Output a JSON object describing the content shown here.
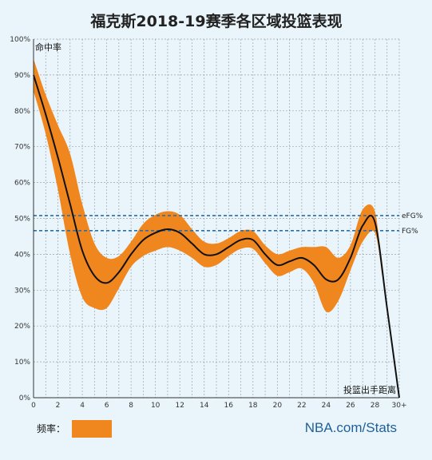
{
  "chart_data": {
    "type": "line",
    "title": "福克斯2018-19赛季各区域投篮表现",
    "ylabel": "命中率",
    "xlabel": "投篮出手距离",
    "x_ticks": [
      "0",
      "2",
      "4",
      "6",
      "8",
      "10",
      "12",
      "14",
      "16",
      "18",
      "20",
      "22",
      "24",
      "26",
      "28",
      "30+"
    ],
    "y_ticks": [
      "0%",
      "10%",
      "20%",
      "30%",
      "40%",
      "50%",
      "60%",
      "70%",
      "80%",
      "90%",
      "100%"
    ],
    "xlim": [
      0,
      30
    ],
    "ylim": [
      0,
      100
    ],
    "grid": true,
    "series": [
      {
        "x": [
          0,
          1,
          2,
          3,
          4,
          5,
          6,
          7,
          8,
          9,
          10,
          11,
          12,
          13,
          14,
          15,
          16,
          17,
          18,
          19,
          20,
          21,
          22,
          23,
          24,
          25,
          26,
          27,
          28,
          29,
          30
        ],
        "values": [
          90,
          79,
          67,
          54,
          41,
          34,
          32,
          35,
          40,
          44,
          46,
          47,
          46,
          43,
          40,
          40,
          42,
          44,
          44,
          40,
          37,
          38,
          39,
          37,
          33,
          33,
          39,
          48,
          49,
          25,
          0
        ],
        "color": "#111111"
      }
    ],
    "band": {
      "label": "频率：",
      "color": "#f0871e",
      "x": [
        0,
        1,
        2,
        3,
        4,
        5,
        6,
        7,
        8,
        9,
        10,
        11,
        12,
        13,
        14,
        15,
        16,
        17,
        18,
        19,
        20,
        21,
        22,
        23,
        24,
        25,
        26,
        27,
        28,
        28.6
      ],
      "half_width": [
        4.5,
        5.5,
        9,
        14,
        13,
        9,
        7,
        4.5,
        3.5,
        4.5,
        5,
        5,
        5,
        4,
        3.5,
        3,
        2.5,
        2.5,
        2.5,
        2.5,
        3,
        3,
        3,
        5,
        9,
        6,
        3.5,
        4.5,
        3,
        0.5
      ]
    },
    "reference_lines": [
      {
        "label": "eFG%",
        "value": 50.8,
        "color": "#2a6fa8"
      },
      {
        "label": "FG%",
        "value": 46.6,
        "color": "#2a6fa8"
      }
    ],
    "legend": {
      "label": "频率：",
      "color": "#f0871e"
    },
    "source": "NBA.com/Stats"
  }
}
